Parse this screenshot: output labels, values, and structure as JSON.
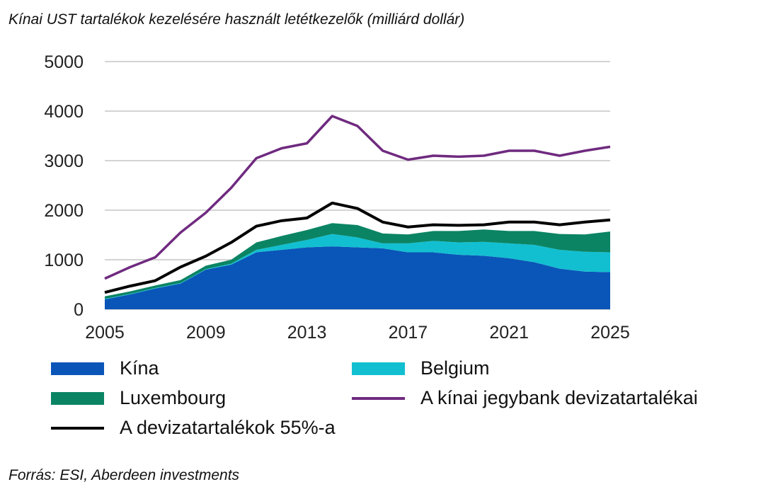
{
  "title": "Kínai UST tartalékok kezelésére használt letétkezelők (milliárd dollár)",
  "source": "Forrás: ESI, Aberdeen investments",
  "chart_data": {
    "type": "area",
    "title": "Kínai UST tartalékok kezelésére használt letétkezelők (milliárd dollár)",
    "x": [
      2005,
      2006,
      2007,
      2008,
      2009,
      2010,
      2011,
      2012,
      2013,
      2014,
      2015,
      2016,
      2017,
      2018,
      2019,
      2020,
      2021,
      2022,
      2023,
      2024,
      2025
    ],
    "ylim": [
      0,
      5000
    ],
    "yticks": [
      "0",
      "1000",
      "2000",
      "3000",
      "4000",
      "5000"
    ],
    "xticks": [
      "2005",
      "2009",
      "2013",
      "2017",
      "2021",
      "2025"
    ],
    "grid": true,
    "legend_placement": "bottom",
    "series": [
      {
        "name": "Kína",
        "type": "stacked-area",
        "color": "#0a55b8",
        "values": [
          200,
          300,
          420,
          520,
          800,
          900,
          1150,
          1200,
          1250,
          1270,
          1250,
          1230,
          1150,
          1150,
          1100,
          1080,
          1030,
          950,
          820,
          760,
          750
        ]
      },
      {
        "name": "Belgium",
        "type": "stacked-area",
        "color": "#12bfd0",
        "values": [
          10,
          10,
          10,
          10,
          10,
          20,
          50,
          100,
          150,
          250,
          200,
          100,
          180,
          230,
          250,
          280,
          300,
          350,
          380,
          400,
          400
        ]
      },
      {
        "name": "Luxembourg",
        "type": "stacked-area",
        "color": "#0b8464",
        "values": [
          50,
          50,
          50,
          60,
          70,
          80,
          150,
          180,
          200,
          220,
          250,
          200,
          180,
          200,
          230,
          250,
          250,
          280,
          320,
          350,
          420
        ]
      },
      {
        "name": "A kínai jegybank devizatartalékai",
        "type": "line",
        "color": "#6f2a7f",
        "values": [
          620,
          850,
          1050,
          1550,
          1950,
          2450,
          3050,
          3250,
          3350,
          3900,
          3700,
          3200,
          3020,
          3100,
          3080,
          3100,
          3200,
          3200,
          3100,
          3200,
          3280
        ]
      },
      {
        "name": "A devizatartalékok 55%-a",
        "type": "line",
        "color": "#000000",
        "values": [
          341,
          468,
          578,
          853,
          1073,
          1348,
          1678,
          1788,
          1843,
          2145,
          2035,
          1760,
          1661,
          1705,
          1694,
          1705,
          1760,
          1760,
          1705,
          1760,
          1804
        ]
      }
    ]
  }
}
